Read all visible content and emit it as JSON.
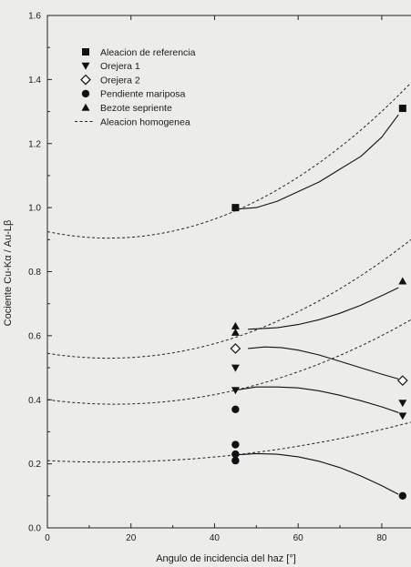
{
  "chart_data": {
    "type": "scatter",
    "title": "",
    "xlabel": "Angulo de incidencia del haz [°]",
    "ylabel": "Cociente Cu-Kα / Au-Lβ",
    "xlim": [
      0,
      87
    ],
    "ylim": [
      0,
      1.6
    ],
    "x_ticks": [
      "0",
      "20",
      "40",
      "60",
      "80"
    ],
    "y_ticks": [
      "0.0",
      "0.2",
      "0.4",
      "0.6",
      "0.8",
      "1.0",
      "1.2",
      "1.4",
      "1.6"
    ],
    "grid": false,
    "legend_position": "top-left",
    "series": [
      {
        "name": "Aleacion de referencia",
        "marker": "square",
        "points": [
          [
            45,
            1.0
          ],
          [
            85,
            1.31
          ]
        ]
      },
      {
        "name": "Orejera 1",
        "marker": "triangle-down",
        "points": [
          [
            45,
            0.5
          ],
          [
            45,
            0.43
          ],
          [
            85,
            0.39
          ],
          [
            85,
            0.35
          ]
        ]
      },
      {
        "name": "Orejera 2",
        "marker": "diamond-open",
        "points": [
          [
            45,
            0.56
          ],
          [
            85,
            0.46
          ]
        ]
      },
      {
        "name": "Pendiente mariposa",
        "marker": "circle",
        "points": [
          [
            45,
            0.37
          ],
          [
            45,
            0.26
          ],
          [
            45,
            0.23
          ],
          [
            45,
            0.21
          ],
          [
            85,
            0.1
          ]
        ]
      },
      {
        "name": "Bezote sepriente",
        "marker": "triangle-up",
        "points": [
          [
            45,
            0.63
          ],
          [
            45,
            0.61
          ],
          [
            85,
            0.77
          ]
        ]
      },
      {
        "name": "Aleacion homogenea",
        "marker": "dashed-line",
        "points": []
      }
    ],
    "homogeneous_curves": [
      {
        "y0": 0.925,
        "y45": 0.99,
        "y87": 1.39
      },
      {
        "y0": 0.545,
        "y45": 0.595,
        "y87": 0.9
      },
      {
        "y0": 0.4,
        "y45": 0.43,
        "y87": 0.65
      },
      {
        "y0": 0.21,
        "y45": 0.228,
        "y87": 0.33
      }
    ],
    "fit_curves": [
      {
        "x": [
          45,
          50,
          55,
          60,
          65,
          70,
          75,
          80,
          84
        ],
        "y": [
          0.995,
          1.0,
          1.02,
          1.05,
          1.08,
          1.12,
          1.16,
          1.22,
          1.29
        ]
      },
      {
        "x": [
          48,
          55,
          60,
          65,
          70,
          75,
          80,
          84
        ],
        "y": [
          0.62,
          0.625,
          0.635,
          0.65,
          0.67,
          0.695,
          0.725,
          0.75
        ]
      },
      {
        "x": [
          48,
          52,
          56,
          60,
          65,
          70,
          75,
          80,
          84
        ],
        "y": [
          0.56,
          0.565,
          0.563,
          0.555,
          0.54,
          0.52,
          0.5,
          0.48,
          0.465
        ]
      },
      {
        "x": [
          45,
          50,
          55,
          60,
          65,
          70,
          75,
          80,
          84
        ],
        "y": [
          0.43,
          0.44,
          0.44,
          0.437,
          0.428,
          0.414,
          0.397,
          0.378,
          0.36
        ]
      },
      {
        "x": [
          45,
          50,
          55,
          60,
          65,
          70,
          75,
          80,
          84
        ],
        "y": [
          0.228,
          0.232,
          0.23,
          0.222,
          0.208,
          0.188,
          0.162,
          0.132,
          0.105
        ]
      }
    ]
  }
}
